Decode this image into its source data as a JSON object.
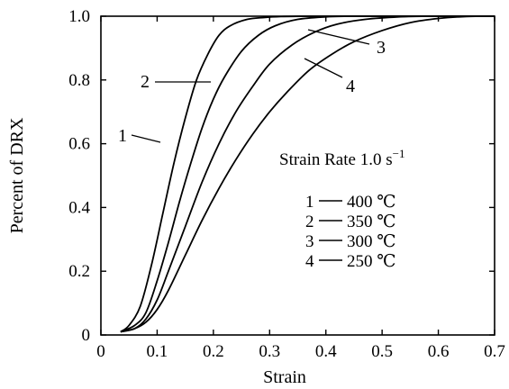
{
  "chart_data": {
    "type": "line",
    "title": "",
    "xlabel": "Strain",
    "ylabel": "Percent of DRX",
    "xlim": [
      0.0,
      0.7
    ],
    "ylim": [
      0.0,
      1.0
    ],
    "xticks": [
      "0",
      "0.1",
      "0.2",
      "0.3",
      "0.4",
      "0.5",
      "0.6",
      "0.7"
    ],
    "yticks": [
      "0",
      "0.2",
      "0.4",
      "0.6",
      "0.8",
      "1.0"
    ],
    "grid": false,
    "annotation": "Strain Rate 1.0 s",
    "annotation_sup": "−1",
    "legend": [
      {
        "label": "1",
        "text": "400 ℃"
      },
      {
        "label": "2",
        "text": "350 ℃"
      },
      {
        "label": "3",
        "text": "300 ℃"
      },
      {
        "label": "4",
        "text": "250 ℃"
      }
    ],
    "series": [
      {
        "name": "1",
        "x": [
          0.035,
          0.05,
          0.07,
          0.09,
          0.11,
          0.13,
          0.15,
          0.17,
          0.19,
          0.21,
          0.23,
          0.26,
          0.29,
          0.32,
          0.36
        ],
        "y": [
          0.01,
          0.03,
          0.09,
          0.22,
          0.38,
          0.54,
          0.68,
          0.8,
          0.88,
          0.94,
          0.97,
          0.99,
          0.996,
          0.999,
          1.0
        ]
      },
      {
        "name": "2",
        "x": [
          0.035,
          0.06,
          0.08,
          0.1,
          0.12,
          0.14,
          0.16,
          0.18,
          0.2,
          0.22,
          0.25,
          0.28,
          0.31,
          0.35,
          0.4,
          0.44
        ],
        "y": [
          0.01,
          0.03,
          0.07,
          0.17,
          0.29,
          0.42,
          0.54,
          0.65,
          0.74,
          0.81,
          0.89,
          0.94,
          0.97,
          0.99,
          0.998,
          1.0
        ]
      },
      {
        "name": "3",
        "x": [
          0.035,
          0.06,
          0.08,
          0.1,
          0.12,
          0.15,
          0.18,
          0.21,
          0.24,
          0.27,
          0.3,
          0.34,
          0.38,
          0.42,
          0.47,
          0.53,
          0.58
        ],
        "y": [
          0.01,
          0.02,
          0.05,
          0.11,
          0.2,
          0.34,
          0.48,
          0.6,
          0.7,
          0.78,
          0.85,
          0.91,
          0.95,
          0.975,
          0.99,
          0.998,
          1.0
        ]
      },
      {
        "name": "4",
        "x": [
          0.035,
          0.06,
          0.08,
          0.1,
          0.12,
          0.15,
          0.18,
          0.21,
          0.24,
          0.27,
          0.3,
          0.33,
          0.37,
          0.41,
          0.45,
          0.5,
          0.55,
          0.6,
          0.65,
          0.7
        ],
        "y": [
          0.01,
          0.02,
          0.04,
          0.08,
          0.14,
          0.25,
          0.36,
          0.46,
          0.55,
          0.63,
          0.7,
          0.76,
          0.83,
          0.88,
          0.92,
          0.955,
          0.98,
          0.993,
          0.999,
          1.0
        ]
      }
    ]
  }
}
